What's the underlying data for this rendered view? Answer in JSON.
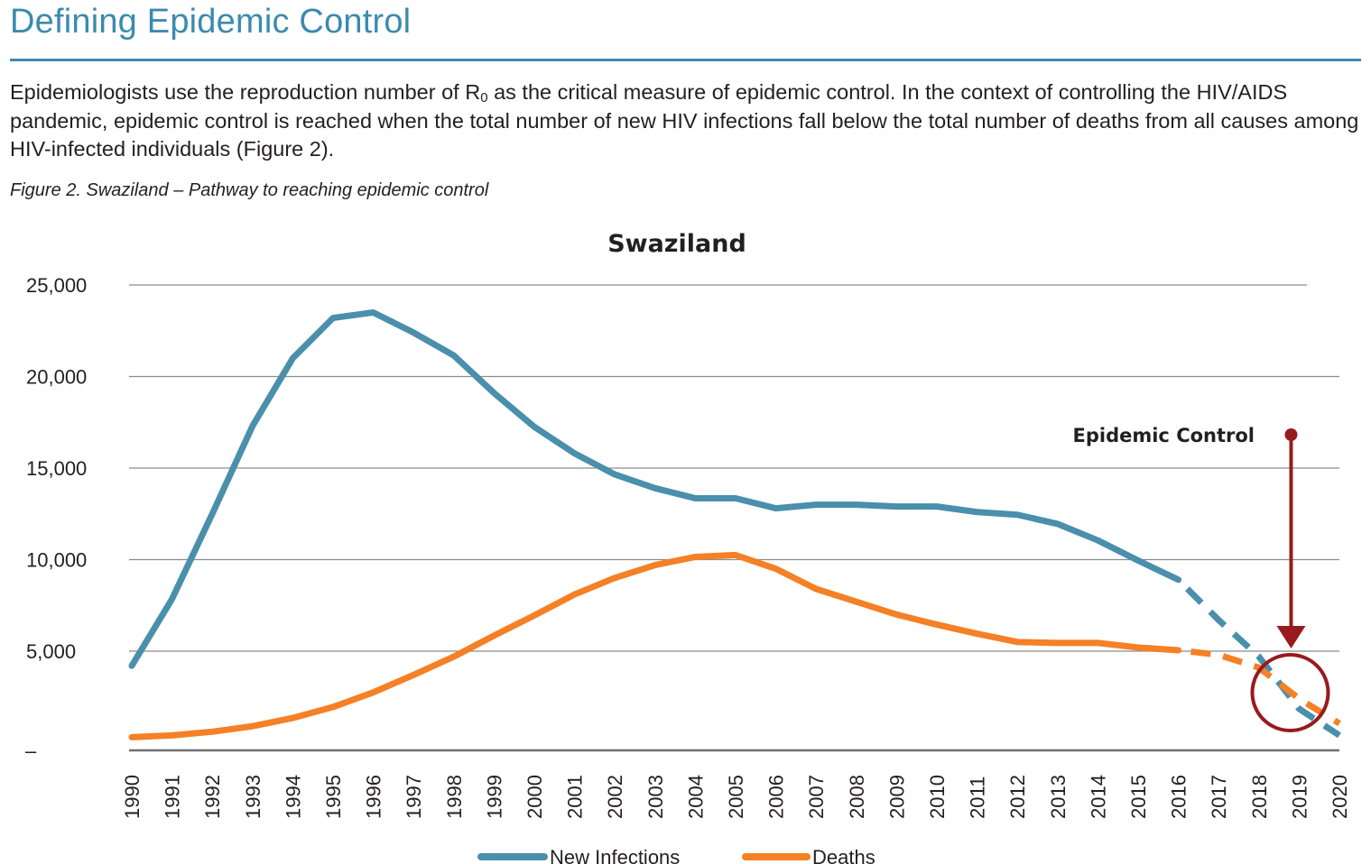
{
  "page": {
    "title": "Defining Epidemic Control",
    "intro_part1": "Epidemiologists use the reproduction number of R",
    "intro_sub": "0",
    "intro_part2": " as the critical measure of epidemic control.  In the context of controlling the HIV/AIDS pandemic, epidemic control is reached when the total number of new HIV infections fall below the total number of deaths from all causes among HIV-infected individuals (Figure 2).",
    "figure_caption": "Figure 2. Swaziland – Pathway to reaching epidemic control"
  },
  "colors": {
    "accent": "#3b8bad",
    "new_infections": "#4a8fac",
    "deaths": "#f58025",
    "annotation": "#971b1e",
    "gridline": "#8c8c8c",
    "axis": "#707070"
  },
  "chart_data": {
    "type": "line",
    "title": "Swaziland",
    "xlabel": "",
    "ylabel": "",
    "ylim": [
      0,
      25000
    ],
    "yticks": [
      0,
      5000,
      10000,
      15000,
      20000,
      25000
    ],
    "ytick_labels": [
      "–",
      "5,000",
      "10,000",
      "15,000",
      "20,000",
      "25,000"
    ],
    "grid": true,
    "legend_position": "bottom",
    "x": [
      1990,
      1991,
      1992,
      1993,
      1994,
      1995,
      1996,
      1997,
      1998,
      1999,
      2000,
      2001,
      2002,
      2003,
      2004,
      2005,
      2006,
      2007,
      2008,
      2009,
      2010,
      2011,
      2012,
      2013,
      2014,
      2015,
      2016,
      2017,
      2018,
      2019,
      2020
    ],
    "x_labels": [
      "1990",
      "1991",
      "1992",
      "1993",
      "1994",
      "1995",
      "1996",
      "1997",
      "1998",
      "1999",
      "2000",
      "2001",
      "2002",
      "2003",
      "2004",
      "2005",
      "2006",
      "2007",
      "2008",
      "2009",
      "2010",
      "2011",
      "2012",
      "2013",
      "2014",
      "2015",
      "2016",
      "2017",
      "2018",
      "2019",
      "2020"
    ],
    "projection_start": 2016,
    "series": [
      {
        "name": "New Infections",
        "values": [
          4200,
          7850,
          12500,
          17300,
          21000,
          23200,
          23500,
          22400,
          21150,
          19100,
          17250,
          15800,
          14650,
          13900,
          13350,
          13350,
          12800,
          13000,
          13000,
          12900,
          12900,
          12600,
          12450,
          11950,
          11050,
          9950,
          8900,
          6700,
          4700,
          1850,
          400
        ]
      },
      {
        "name": "Deaths",
        "values": [
          300,
          400,
          600,
          900,
          1350,
          1950,
          2750,
          3700,
          4700,
          5850,
          6950,
          8100,
          9000,
          9700,
          10150,
          10250,
          9500,
          8400,
          7700,
          7000,
          6450,
          5950,
          5500,
          5450,
          5450,
          5200,
          5050,
          4800,
          4100,
          2400,
          1050
        ]
      }
    ],
    "annotations": [
      {
        "text": "Epidemic Control",
        "type": "arrow-down",
        "target_year": 2018.8,
        "target_value": 3000
      }
    ]
  }
}
